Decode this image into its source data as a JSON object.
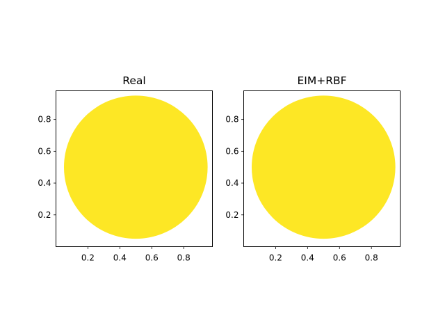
{
  "chart_data": [
    {
      "type": "heatmap",
      "title": "Real",
      "xlabel": "",
      "ylabel": "",
      "xlim": [
        0.0,
        0.98
      ],
      "ylim": [
        0.0,
        0.98
      ],
      "xticks": [
        0.2,
        0.4,
        0.6,
        0.8
      ],
      "yticks": [
        0.2,
        0.4,
        0.6,
        0.8
      ],
      "xtick_labels": [
        "0.2",
        "0.4",
        "0.6",
        "0.8"
      ],
      "ytick_labels": [
        "0.2",
        "0.4",
        "0.6",
        "0.8"
      ],
      "disk": {
        "center": [
          0.5,
          0.5
        ],
        "radius": 0.45,
        "fill_color": "#fde725"
      },
      "grid": false
    },
    {
      "type": "heatmap",
      "title": "EIM+RBF",
      "xlabel": "",
      "ylabel": "",
      "xlim": [
        0.0,
        0.98
      ],
      "ylim": [
        0.0,
        0.98
      ],
      "xticks": [
        0.2,
        0.4,
        0.6,
        0.8
      ],
      "yticks": [
        0.2,
        0.4,
        0.6,
        0.8
      ],
      "xtick_labels": [
        "0.2",
        "0.4",
        "0.6",
        "0.8"
      ],
      "ytick_labels": [
        "0.2",
        "0.4",
        "0.6",
        "0.8"
      ],
      "disk": {
        "center": [
          0.5,
          0.5
        ],
        "radius": 0.45,
        "fill_color": "#fde725"
      },
      "grid": false
    }
  ],
  "colors": {
    "background": "#ffffff",
    "axes": "#000000"
  }
}
